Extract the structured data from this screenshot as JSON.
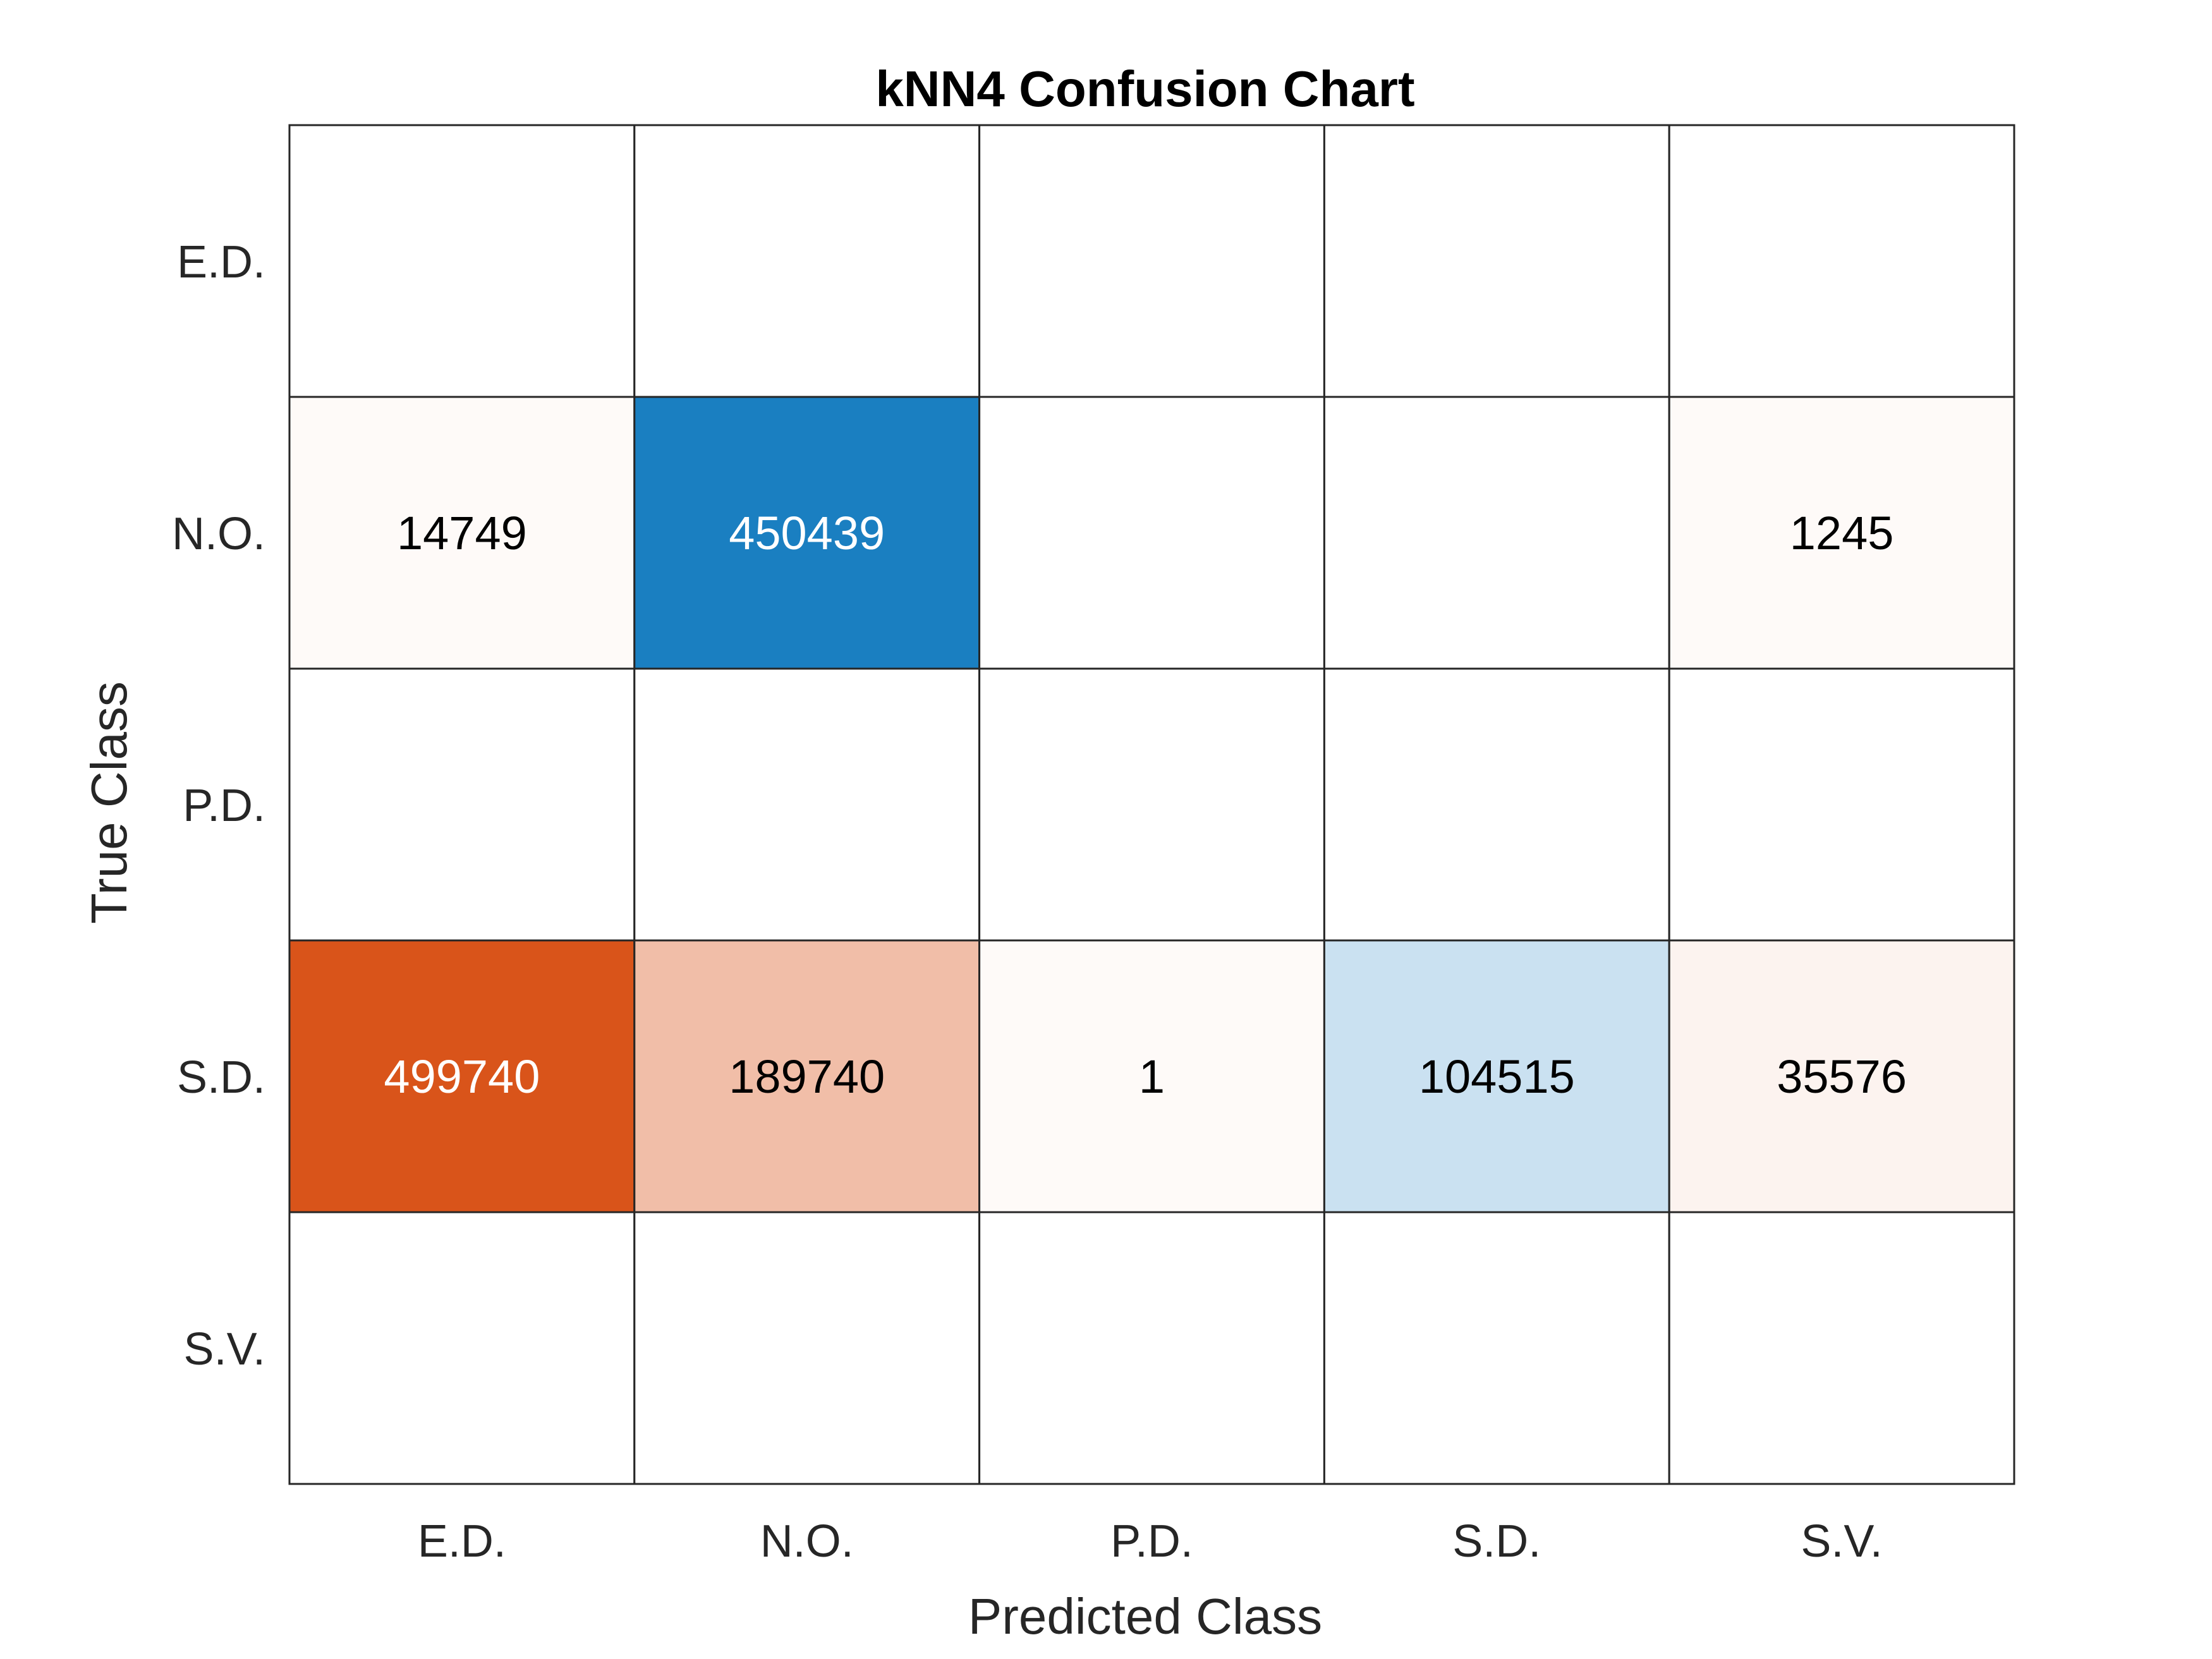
{
  "chart_data": {
    "type": "heatmap",
    "subtype": "confusion-matrix",
    "title": "kNN4 Confusion Chart",
    "xlabel": "Predicted Class",
    "ylabel": "True Class",
    "x_categories": [
      "E.D.",
      "N.O.",
      "P.D.",
      "S.D.",
      "S.V."
    ],
    "y_categories": [
      "E.D.",
      "N.O.",
      "P.D.",
      "S.D.",
      "S.V."
    ],
    "values": [
      [
        0,
        0,
        0,
        0,
        0
      ],
      [
        14749,
        450439,
        0,
        0,
        1245
      ],
      [
        0,
        0,
        0,
        0,
        0
      ],
      [
        499740,
        189740,
        1,
        104515,
        35576
      ],
      [
        0,
        0,
        0,
        0,
        0
      ]
    ],
    "zero_cells_shown_blank": true,
    "grid": true,
    "colors": {
      "correct_max": "#1a7fc1",
      "correct_min": "#ffffff",
      "incorrect_max": "#d9541a",
      "incorrect_min": "#ffffff",
      "text_dark": "#000000",
      "text_light": "#ffffff",
      "grid_line": "#262626"
    }
  }
}
